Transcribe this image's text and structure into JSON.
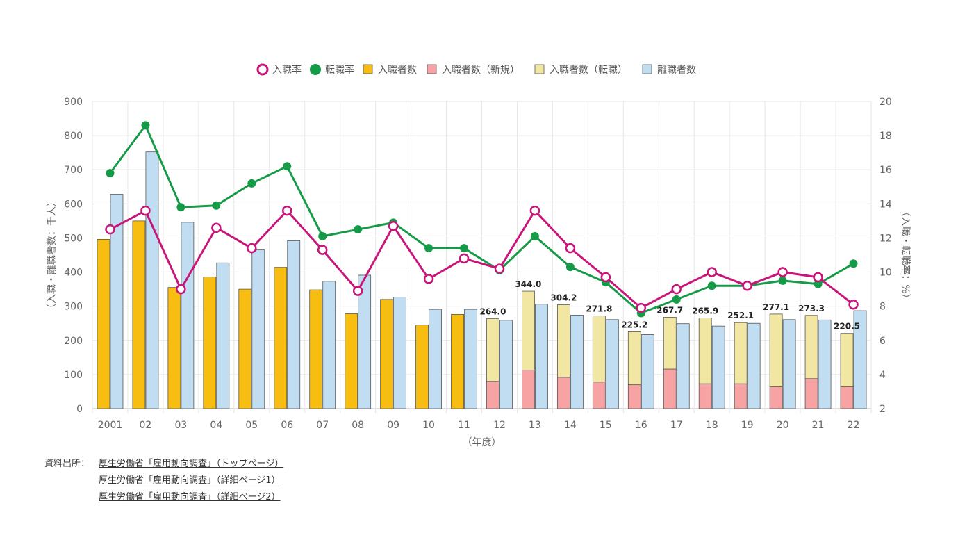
{
  "chart_data": {
    "type": "bar",
    "categories": [
      "2001",
      "02",
      "03",
      "04",
      "05",
      "06",
      "07",
      "08",
      "09",
      "10",
      "11",
      "12",
      "13",
      "14",
      "15",
      "16",
      "17",
      "18",
      "19",
      "20",
      "21",
      "22"
    ],
    "legend": [
      {
        "key": "hire_rate",
        "label": "入職率",
        "kind": "ring",
        "color": "#c8157a"
      },
      {
        "key": "change_rate",
        "label": "転職率",
        "kind": "dot",
        "color": "#159a48"
      },
      {
        "key": "hires",
        "label": "入職者数",
        "kind": "box",
        "color": "#f8bd11"
      },
      {
        "key": "hires_new",
        "label": "入職者数（新規）",
        "kind": "box",
        "color": "#f7a3a3"
      },
      {
        "key": "hires_change",
        "label": "入職者数（転職）",
        "kind": "box",
        "color": "#f2e7a2"
      },
      {
        "key": "separations",
        "label": "離職者数",
        "kind": "box",
        "color": "#c0ddf2"
      }
    ],
    "series": [
      {
        "name": "入職者数",
        "values": [
          496,
          550,
          355,
          386,
          350,
          414,
          348,
          278,
          320,
          245,
          276,
          null,
          null,
          null,
          null,
          null,
          null,
          null,
          null,
          null,
          null,
          null
        ]
      },
      {
        "name": "入職者数（新規）",
        "values": [
          null,
          null,
          null,
          null,
          null,
          null,
          null,
          null,
          null,
          null,
          null,
          80,
          113,
          92,
          78,
          70,
          116,
          73,
          73,
          64,
          88,
          64
        ]
      },
      {
        "name": "入職者数（転職）",
        "values": [
          null,
          null,
          null,
          null,
          null,
          null,
          null,
          null,
          null,
          null,
          null,
          184.0,
          231.0,
          212.2,
          193.8,
          155.2,
          151.7,
          192.9,
          179.1,
          213.1,
          185.3,
          156.5
        ]
      },
      {
        "name": "離職者数",
        "values": [
          628,
          752,
          546,
          427,
          465,
          492,
          373,
          391,
          327,
          291,
          291,
          259,
          306,
          274,
          261,
          217,
          249,
          242,
          250,
          261,
          260,
          287
        ]
      },
      {
        "name": "入職率",
        "axis": "right",
        "values": [
          12.5,
          13.6,
          9.0,
          12.6,
          11.4,
          13.6,
          11.3,
          8.9,
          12.7,
          9.6,
          10.8,
          10.2,
          13.6,
          11.4,
          9.7,
          7.9,
          9.0,
          10.0,
          9.2,
          10.0,
          9.7,
          8.1
        ]
      },
      {
        "name": "転職率",
        "axis": "right",
        "values": [
          15.8,
          18.6,
          13.8,
          13.9,
          15.2,
          16.2,
          12.1,
          12.5,
          12.9,
          11.4,
          11.4,
          10.1,
          12.1,
          10.3,
          9.4,
          7.6,
          8.4,
          9.2,
          9.2,
          9.5,
          9.3,
          10.5
        ]
      }
    ],
    "totals_labels": [
      "",
      "",
      "",
      "",
      "",
      "",
      "",
      "",
      "",
      "",
      "",
      "264.0",
      "344.0",
      "304.2",
      "271.8",
      "225.2",
      "267.7",
      "265.9",
      "252.1",
      "277.1",
      "273.3",
      "220.5"
    ],
    "ylim": [
      0,
      900
    ],
    "y_ticks": [
      "0",
      "100",
      "200",
      "300",
      "400",
      "500",
      "600",
      "700",
      "800",
      "900"
    ],
    "y2lim": [
      2,
      20
    ],
    "y2_ticks": [
      "2",
      "4",
      "6",
      "8",
      "10",
      "12",
      "14",
      "16",
      "18",
      "20"
    ],
    "xlabel": "（年度）",
    "ylabel": "（入職・離職者数：千人）",
    "y2label": "（入職・転職率：%）",
    "grid": true,
    "legend_position": "top-center"
  },
  "source": {
    "label": "資料出所：",
    "links": [
      "厚生労働省「雇用動向調査」（トップページ）",
      "厚生労働省「雇用動向調査」（詳細ページ1）",
      "厚生労働省「雇用動向調査」（詳細ページ2）"
    ]
  }
}
